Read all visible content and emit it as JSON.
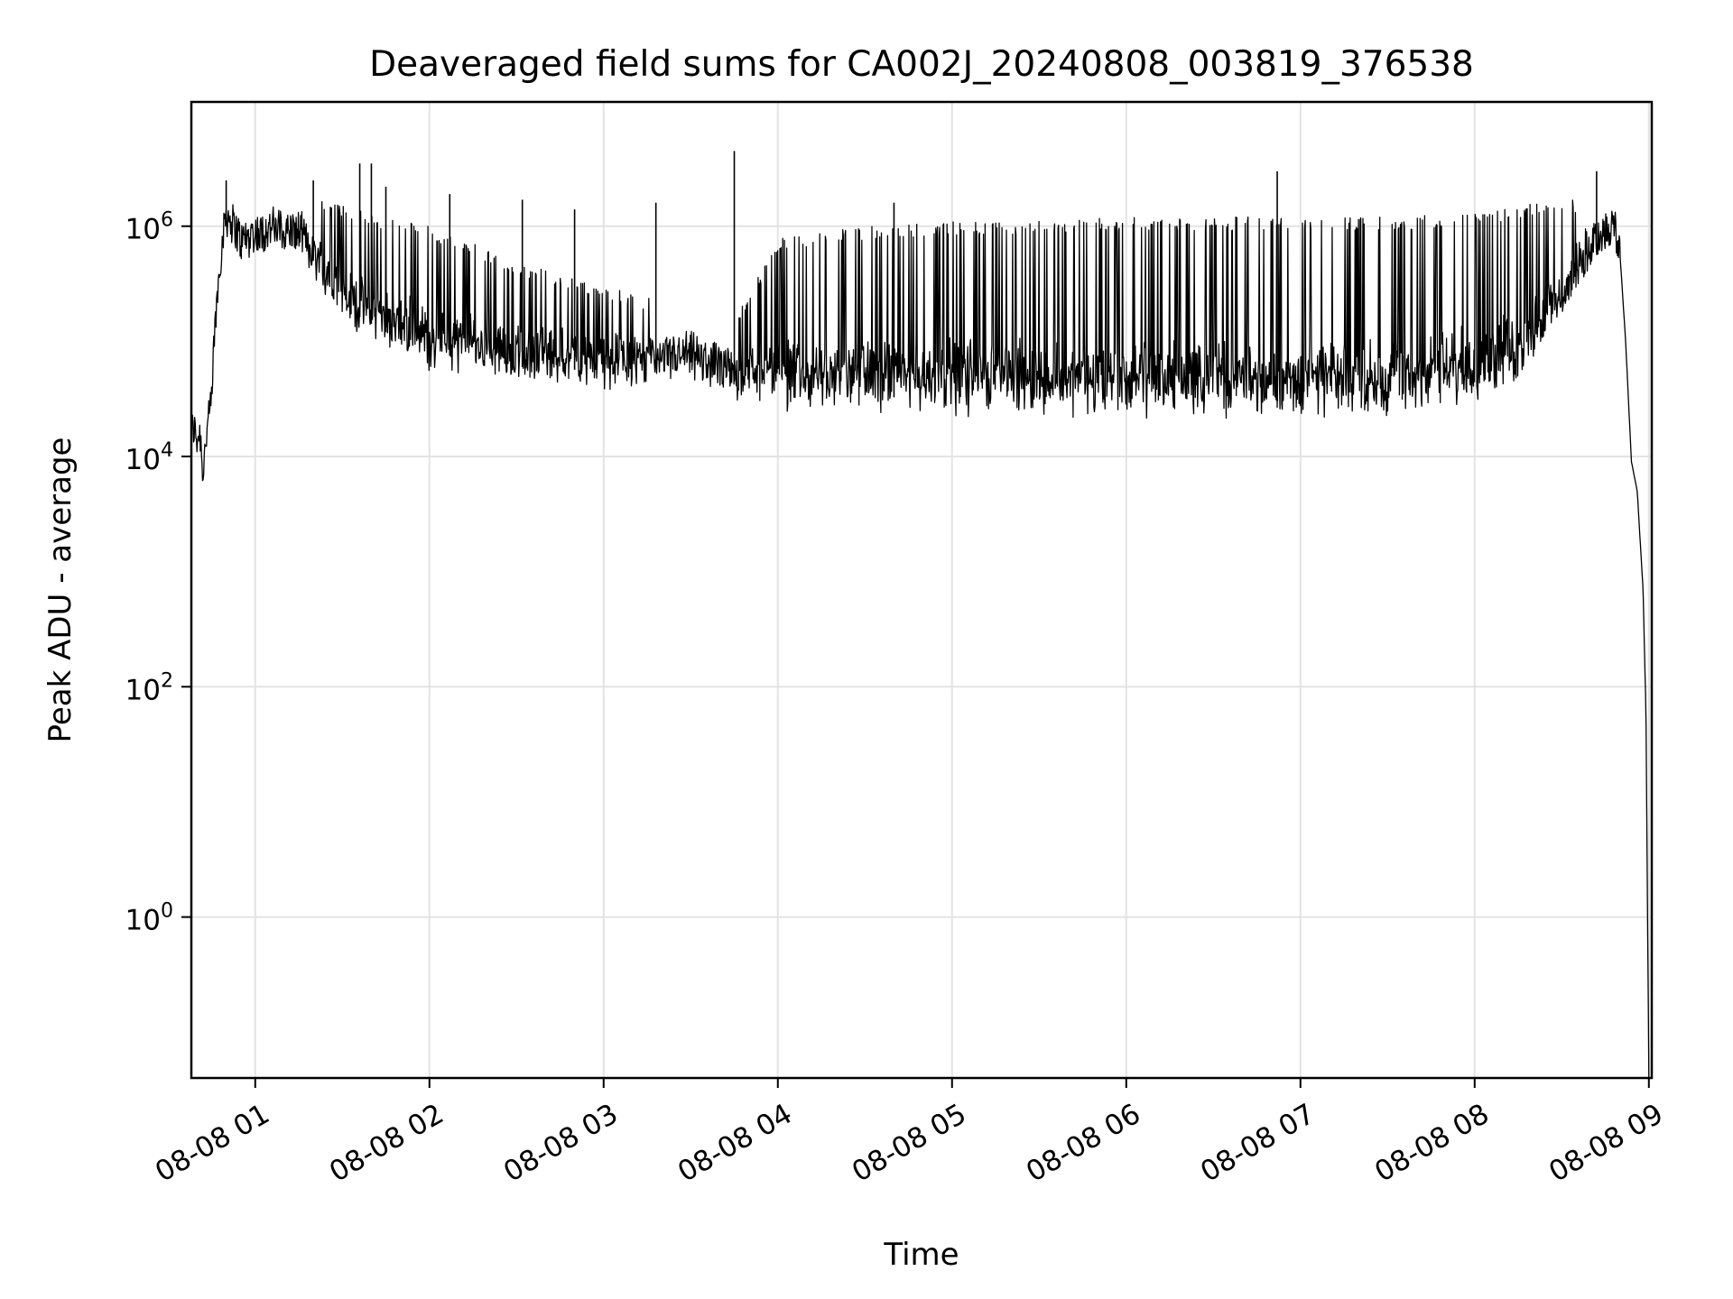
{
  "chart_data": {
    "type": "line",
    "title": "Deaveraged field sums for CA002J_20240808_003819_376538",
    "xlabel": "Time",
    "ylabel": "Peak ADU - average",
    "y_scale": "log",
    "ylim": [
      0.04,
      12000000
    ],
    "xlim": [
      "2024-08-08 00:38",
      "2024-08-08 09:01"
    ],
    "x_ticks": [
      {
        "value": "2024-08-08 01:00",
        "label": "08-08 01"
      },
      {
        "value": "2024-08-08 02:00",
        "label": "08-08 02"
      },
      {
        "value": "2024-08-08 03:00",
        "label": "08-08 03"
      },
      {
        "value": "2024-08-08 04:00",
        "label": "08-08 04"
      },
      {
        "value": "2024-08-08 05:00",
        "label": "08-08 05"
      },
      {
        "value": "2024-08-08 06:00",
        "label": "08-08 06"
      },
      {
        "value": "2024-08-08 07:00",
        "label": "08-08 07"
      },
      {
        "value": "2024-08-08 08:00",
        "label": "08-08 08"
      },
      {
        "value": "2024-08-08 09:00",
        "label": "08-08 09"
      }
    ],
    "y_ticks": [
      {
        "value": 1,
        "base": "10",
        "exp": "0"
      },
      {
        "value": 100,
        "base": "10",
        "exp": "2"
      },
      {
        "value": 10000,
        "base": "10",
        "exp": "4"
      },
      {
        "value": 1000000,
        "base": "10",
        "exp": "6"
      }
    ],
    "grid": true,
    "line_color": "#000000",
    "series": [
      {
        "x": [
          "2024-08-08 00:38",
          "2024-08-08 00:39",
          "2024-08-08 00:40",
          "2024-08-08 00:41",
          "2024-08-08 00:42",
          "2024-08-08 00:43",
          "2024-08-08 00:44",
          "2024-08-08 00:45",
          "2024-08-08 00:46",
          "2024-08-08 00:48",
          "2024-08-08 00:50",
          "2024-08-08 00:55",
          "2024-08-08 01:05",
          "2024-08-08 01:15",
          "2024-08-08 01:30",
          "2024-08-08 01:45",
          "2024-08-08 02:00",
          "2024-08-08 02:30",
          "2024-08-08 03:00",
          "2024-08-08 03:30",
          "2024-08-08 03:45",
          "2024-08-08 04:00",
          "2024-08-08 04:30",
          "2024-08-08 05:00",
          "2024-08-08 05:30",
          "2024-08-08 06:00",
          "2024-08-08 06:30",
          "2024-08-08 07:00",
          "2024-08-08 07:30",
          "2024-08-08 08:00",
          "2024-08-08 08:15",
          "2024-08-08 08:30",
          "2024-08-08 08:40",
          "2024-08-08 08:45",
          "2024-08-08 08:48",
          "2024-08-08 08:50",
          "2024-08-08 08:52",
          "2024-08-08 08:54",
          "2024-08-08 08:56",
          "2024-08-08 08:58",
          "2024-08-08 08:59",
          "2024-08-08 09:00"
        ],
        "baseline": [
          15000,
          17000,
          14000,
          16000,
          7000,
          14000,
          20000,
          30000,
          120000,
          500000,
          1200000,
          700000,
          900000,
          800000,
          200000,
          120000,
          80000,
          60000,
          55000,
          65000,
          45000,
          35000,
          33000,
          32000,
          30000,
          30000,
          30000,
          30000,
          30000,
          40000,
          60000,
          200000,
          600000,
          900000,
          1000000,
          600000,
          100000,
          9000,
          5000,
          700,
          60,
          0.04
        ],
        "peak": [
          25000,
          20000,
          18000,
          20000,
          10000,
          18000,
          25000,
          40000,
          150000,
          900000,
          2500000,
          1400000,
          1500000,
          1800000,
          1500000,
          1200000,
          1000000,
          500000,
          300000,
          200000,
          150000,
          800000,
          1000000,
          1100000,
          1100000,
          1200000,
          1200000,
          1200000,
          1200000,
          1300000,
          1500000,
          1700000,
          1700000,
          1200000,
          1000000,
          600000,
          100000,
          9000,
          5000,
          700,
          60,
          0.04
        ]
      }
    ],
    "spikes": [
      {
        "x": "2024-08-08 00:50",
        "y": 2500000
      },
      {
        "x": "2024-08-08 01:20",
        "y": 2500000
      },
      {
        "x": "2024-08-08 01:36",
        "y": 3500000
      },
      {
        "x": "2024-08-08 01:40",
        "y": 3500000
      },
      {
        "x": "2024-08-08 01:45",
        "y": 2200000
      },
      {
        "x": "2024-08-08 02:07",
        "y": 1900000
      },
      {
        "x": "2024-08-08 02:32",
        "y": 1700000
      },
      {
        "x": "2024-08-08 02:50",
        "y": 1400000
      },
      {
        "x": "2024-08-08 03:18",
        "y": 1600000
      },
      {
        "x": "2024-08-08 03:45",
        "y": 4500000
      },
      {
        "x": "2024-08-08 04:40",
        "y": 1600000
      },
      {
        "x": "2024-08-08 06:52",
        "y": 3000000
      },
      {
        "x": "2024-08-08 08:42",
        "y": 3000000
      }
    ]
  }
}
